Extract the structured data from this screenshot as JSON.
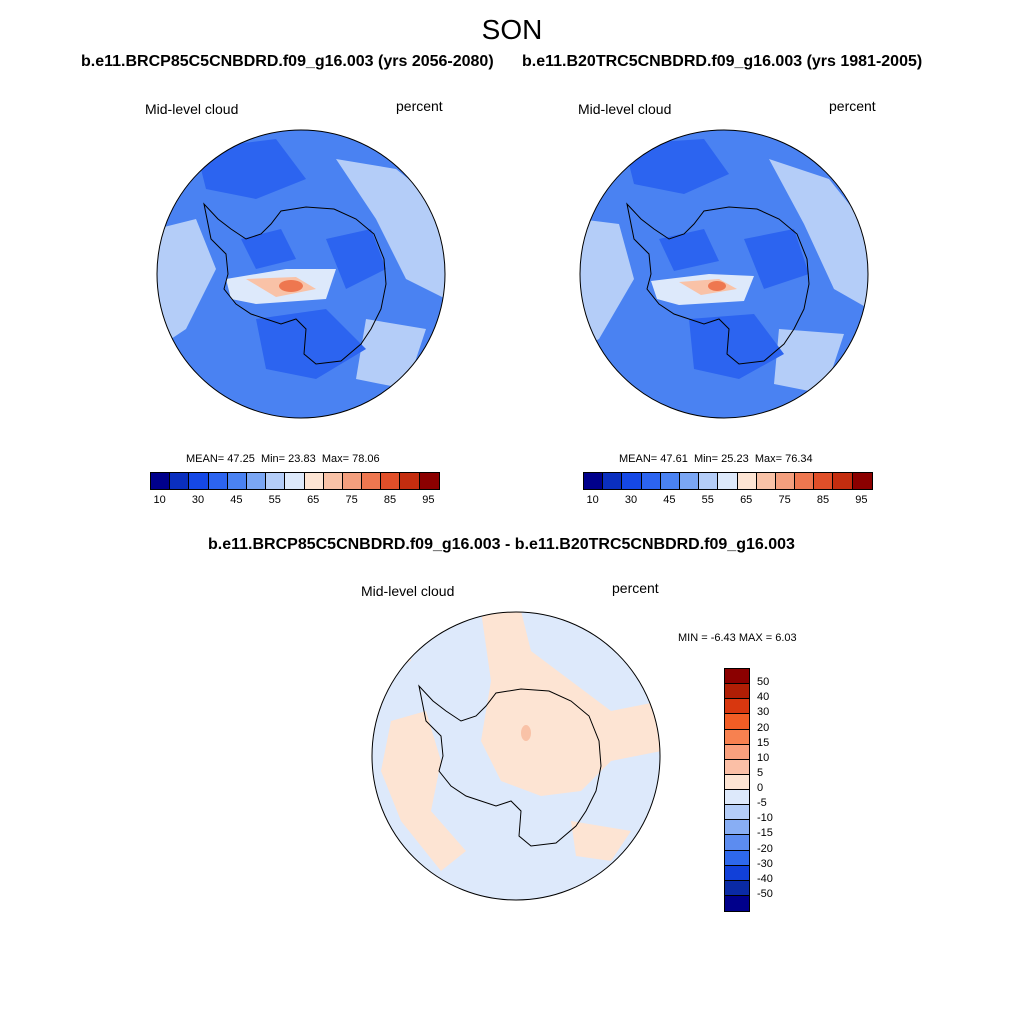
{
  "title": "SON",
  "panels": [
    {
      "title": "b.e11.BRCP85C5CNBDRD.f09_g16.003 (yrs 2056-2080)",
      "variable": "Mid-level cloud",
      "units": "percent",
      "mean_label": "MEAN=",
      "mean": "47.25",
      "min_label": "Min=",
      "min": "23.83",
      "max_label": "Max=",
      "max": "78.06"
    },
    {
      "title": "b.e11.B20TRC5CNBDRD.f09_g16.003 (yrs 1981-2005)",
      "variable": "Mid-level cloud",
      "units": "percent",
      "mean_label": "MEAN=",
      "mean": "47.61",
      "min_label": "Min=",
      "min": "25.23",
      "max_label": "Max=",
      "max": "76.34"
    }
  ],
  "diff_panel": {
    "title": "b.e11.BRCP85C5CNBDRD.f09_g16.003 - b.e11.B20TRC5CNBDRD.f09_g16.003",
    "variable": "Mid-level cloud",
    "units": "percent",
    "min_label": "MIN =",
    "min": "-6.43",
    "max_label": "MAX =",
    "max": "6.03"
  },
  "colorbar": {
    "tick_labels": [
      "10",
      "30",
      "45",
      "55",
      "65",
      "75",
      "85",
      "95"
    ],
    "colors": [
      "#00008b",
      "#0a2fbf",
      "#1548e6",
      "#2c64f0",
      "#4a82f2",
      "#7aa6f4",
      "#b4cdf8",
      "#dde9fb",
      "#fde4d3",
      "#f9c2a7",
      "#f49f7e",
      "#ee7750",
      "#e04f29",
      "#c42d0f",
      "#8b0000"
    ]
  },
  "diff_colorbar": {
    "tick_labels": [
      "50",
      "40",
      "30",
      "20",
      "15",
      "10",
      "5",
      "0",
      "-5",
      "-10",
      "-15",
      "-20",
      "-30",
      "-40",
      "-50"
    ],
    "colors": [
      "#8b0000",
      "#b01e05",
      "#d8370f",
      "#f25d25",
      "#f78150",
      "#f9a07d",
      "#fbbfa6",
      "#fde4d3",
      "#dde9fb",
      "#b4cdf8",
      "#88aef4",
      "#5c8cf0",
      "#2e68ec",
      "#1140d9",
      "#0a2aa5",
      "#00008b"
    ]
  },
  "colors": {
    "antarctica_outline": "#000000",
    "ocean_deep": "#2c64f0",
    "ocean_mid": "#4a82f2",
    "ocean_light": "#b4cdf8",
    "diff_neg": "#dde9fb",
    "diff_pos": "#fde4d3"
  }
}
